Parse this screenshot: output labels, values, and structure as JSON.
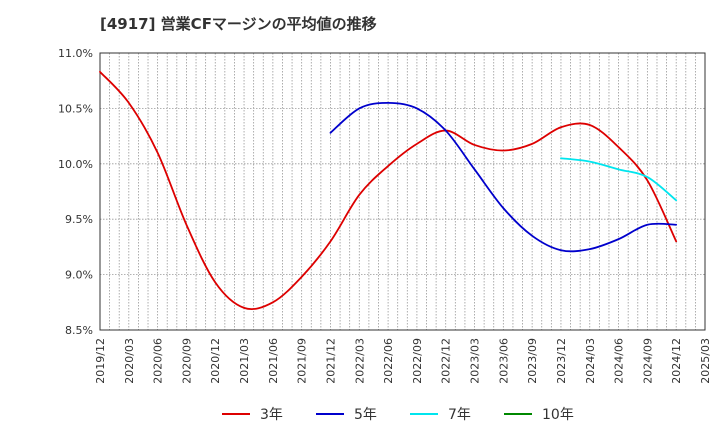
{
  "chart_data": {
    "type": "line",
    "title": "[4917]  営業CFマージンの平均値の推移",
    "xlabel": "",
    "ylabel": "",
    "x": [
      "2019/12",
      "2020/03",
      "2020/06",
      "2020/09",
      "2020/12",
      "2021/03",
      "2021/06",
      "2021/09",
      "2021/12",
      "2022/03",
      "2022/06",
      "2022/09",
      "2022/12",
      "2023/03",
      "2023/06",
      "2023/09",
      "2023/12",
      "2024/03",
      "2024/06",
      "2024/09",
      "2024/12",
      "2025/03"
    ],
    "ylim": [
      8.5,
      11.0
    ],
    "yticks": [
      "8.5%",
      "9.0%",
      "9.5%",
      "10.0%",
      "10.5%",
      "11.0%"
    ],
    "grid": true,
    "legend_position": "bottom",
    "series": [
      {
        "name": "3年",
        "color": "#dd0000",
        "values": [
          10.83,
          10.55,
          10.1,
          9.45,
          8.93,
          8.7,
          8.75,
          8.98,
          9.3,
          9.72,
          9.98,
          10.18,
          10.3,
          10.17,
          10.12,
          10.18,
          10.33,
          10.35,
          10.15,
          9.85,
          9.3,
          null
        ]
      },
      {
        "name": "5年",
        "color": "#0000cc",
        "values": [
          null,
          null,
          null,
          null,
          null,
          null,
          null,
          null,
          10.28,
          10.5,
          10.55,
          10.5,
          10.3,
          9.95,
          9.6,
          9.35,
          9.22,
          9.23,
          9.32,
          9.45,
          9.45,
          null
        ]
      },
      {
        "name": "7年",
        "color": "#00e5ee",
        "values": [
          null,
          null,
          null,
          null,
          null,
          null,
          null,
          null,
          null,
          null,
          null,
          null,
          null,
          null,
          null,
          null,
          10.05,
          10.02,
          9.95,
          9.88,
          9.67,
          null
        ]
      },
      {
        "name": "10年",
        "color": "#008800",
        "values": [
          null,
          null,
          null,
          null,
          null,
          null,
          null,
          null,
          null,
          null,
          null,
          null,
          null,
          null,
          null,
          null,
          null,
          null,
          null,
          null,
          null,
          null
        ]
      }
    ]
  }
}
